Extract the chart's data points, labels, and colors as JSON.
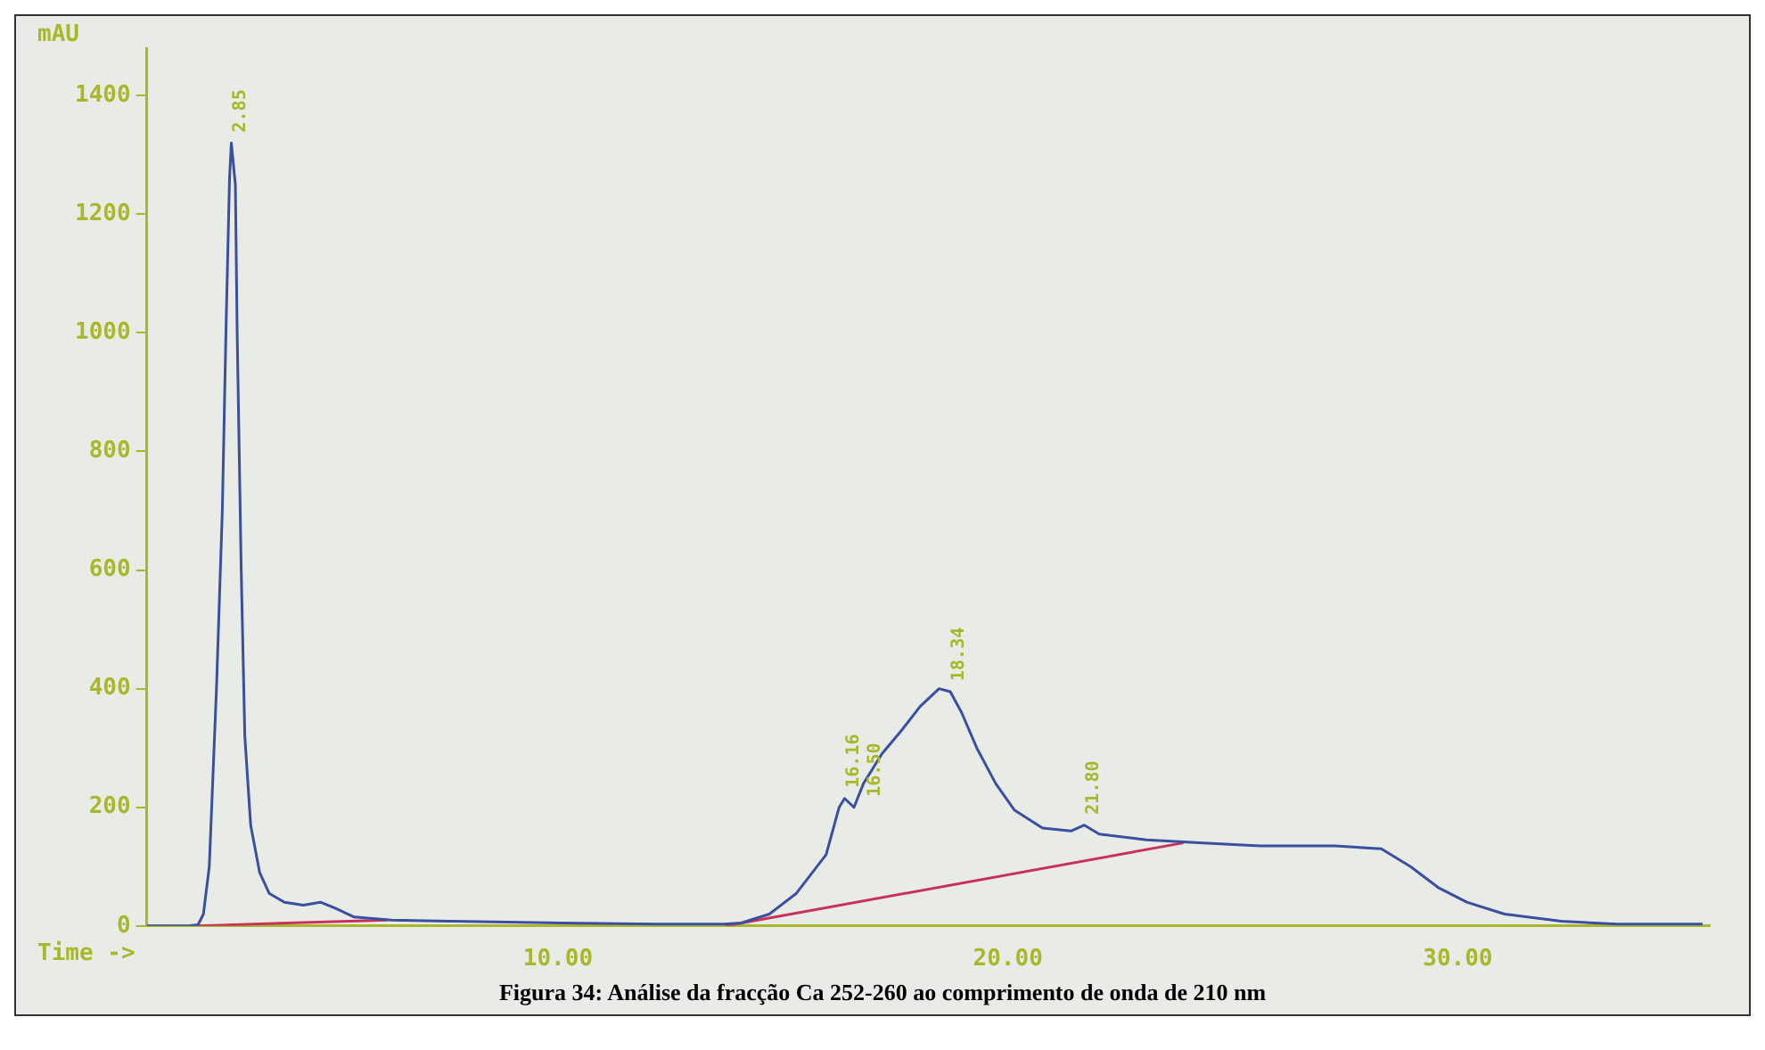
{
  "chart_data": {
    "type": "line",
    "xlabel": "Time ->",
    "ylabel": "mAU",
    "xlim": [
      0.86,
      35.6
    ],
    "xticks": [
      {
        "value": 10,
        "label": "10.00"
      },
      {
        "value": 20,
        "label": "20.00"
      },
      {
        "value": 30,
        "label": "30.00"
      }
    ],
    "ylim": [
      0,
      1480
    ],
    "yticks": [
      0,
      200,
      400,
      600,
      800,
      1000,
      1200,
      1400
    ],
    "grid": false,
    "legend": false,
    "marker": "none",
    "line_style": "solid",
    "series": [
      {
        "color": "#3b4fa0",
        "x": [
          0.86,
          1.78,
          2.0,
          2.12,
          2.25,
          2.41,
          2.54,
          2.62,
          2.7,
          2.74,
          2.83,
          2.87,
          2.96,
          3.04,
          3.17,
          3.37,
          3.58,
          3.92,
          4.34,
          4.72,
          5.05,
          5.47,
          6.3,
          7.57,
          10.08,
          12.18,
          13.69,
          14.07,
          14.7,
          15.3,
          15.96,
          16.25,
          16.37,
          16.58,
          16.79,
          17.2,
          17.64,
          18.05,
          18.47,
          18.72,
          18.97,
          19.31,
          19.73,
          20.15,
          20.77,
          21.4,
          21.7,
          22.03,
          23.08,
          24.34,
          25.6,
          27.27,
          28.3,
          28.95,
          29.56,
          30.2,
          31.04,
          32.3,
          33.55,
          35.44
        ],
        "values": [
          0,
          0,
          2,
          20,
          100,
          400,
          700,
          1000,
          1260,
          1320,
          1250,
          1000,
          600,
          320,
          170,
          90,
          55,
          40,
          35,
          40,
          30,
          15,
          10,
          8,
          5,
          3,
          3,
          5,
          20,
          55,
          120,
          200,
          215,
          200,
          240,
          290,
          330,
          370,
          400,
          395,
          360,
          300,
          240,
          195,
          165,
          160,
          170,
          155,
          145,
          140,
          135,
          135,
          130,
          100,
          65,
          40,
          20,
          8,
          3,
          3
        ]
      },
      {
        "color": "#c8325a",
        "x": [
          2.0,
          4.0,
          6.2,
          null,
          13.73,
          23.9
        ],
        "values": [
          0,
          5,
          10,
          null,
          0,
          140
        ]
      }
    ],
    "annotations": [
      {
        "text": "2.85",
        "x": 2.74,
        "y": 1320
      },
      {
        "text": "16.16",
        "x": 16.37,
        "y": 215
      },
      {
        "text": "16.50",
        "x": 16.58,
        "y": 200
      },
      {
        "text": "18.34",
        "x": 18.72,
        "y": 395
      },
      {
        "text": "21.80",
        "x": 21.7,
        "y": 170
      },
      "Figura 34: Análise da fracção Ca 252-260 ao comprimento de onda de 210 nm"
    ]
  }
}
